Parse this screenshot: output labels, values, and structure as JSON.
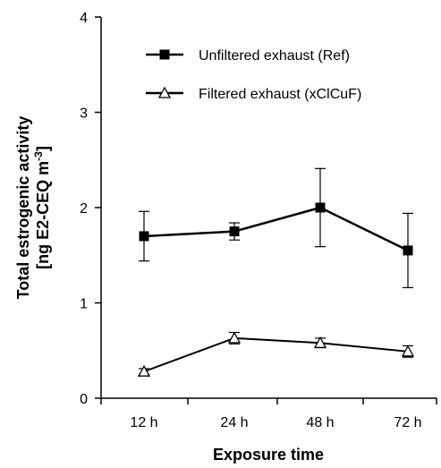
{
  "chart_data": {
    "type": "line",
    "categories": [
      "12 h",
      "24 h",
      "48 h",
      "72 h"
    ],
    "xlabel": "Exposure time",
    "ylabel_line1": "Total estrogenic activity",
    "ylabel_line2_prefix": "[ng E2-CEQ m",
    "ylabel_line2_sup": "-3",
    "ylabel_line2_suffix": "]",
    "ylim": [
      0,
      4
    ],
    "yticks": [
      "0",
      "1",
      "2",
      "3",
      "4"
    ],
    "grid": false,
    "legend_position": "top",
    "series": [
      {
        "name": "Unfiltered exhaust (Ref)",
        "marker": "filled-square",
        "values": [
          1.7,
          1.75,
          2.0,
          1.55
        ],
        "err": [
          0.26,
          0.09,
          0.41,
          0.39
        ]
      },
      {
        "name": "Filtered exhaust (xClCuF)",
        "marker": "open-triangle",
        "values": [
          0.28,
          0.63,
          0.58,
          0.49
        ],
        "err": [
          0.03,
          0.06,
          0.05,
          0.06
        ]
      }
    ],
    "colors": {
      "line": "#000000",
      "background": "#ffffff"
    }
  }
}
